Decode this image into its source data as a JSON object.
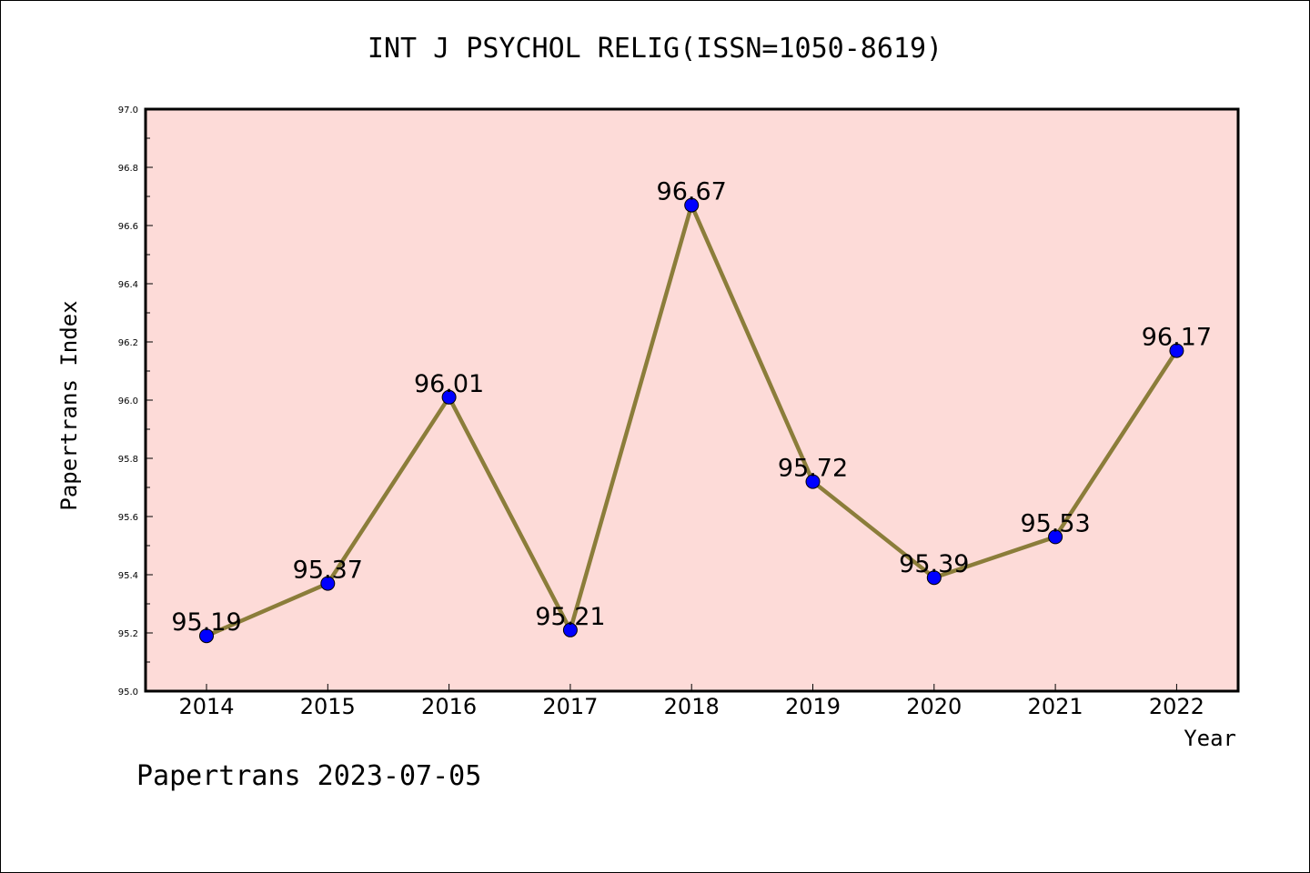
{
  "title": "INT J PSYCHOL RELIG(ISSN=1050-8619)",
  "footer": "Papertrans 2023-07-05",
  "chart_data": {
    "type": "line",
    "x": [
      "2014",
      "2015",
      "2016",
      "2017",
      "2018",
      "2019",
      "2020",
      "2021",
      "2022"
    ],
    "values": [
      95.19,
      95.37,
      96.01,
      95.21,
      96.67,
      95.72,
      95.39,
      95.53,
      96.17
    ],
    "data_labels": [
      "95.19",
      "95.37",
      "96.01",
      "95.21",
      "96.67",
      "95.72",
      "95.39",
      "95.53",
      "96.17"
    ],
    "xlabel": "Year",
    "ylabel": "Papertrans Index",
    "ylim": [
      95.0,
      97.0
    ],
    "yticks": [
      "95.0",
      "95.2",
      "95.4",
      "95.6",
      "95.8",
      "96.0",
      "96.2",
      "96.4",
      "96.6",
      "96.8",
      "97.0"
    ],
    "grid": false,
    "colors": {
      "background": "#fddbd8",
      "line": "#8b7d3a",
      "marker": "#0000ff"
    }
  }
}
